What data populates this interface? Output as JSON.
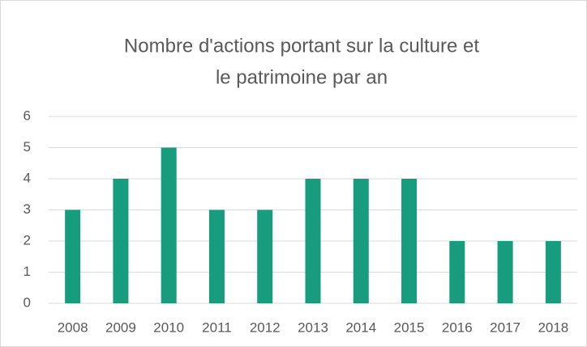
{
  "chart_data": {
    "type": "bar",
    "title": [
      "Nombre d'actions portant sur la culture et",
      "le patrimoine par an"
    ],
    "categories": [
      "2008",
      "2009",
      "2010",
      "2011",
      "2012",
      "2013",
      "2014",
      "2015",
      "2016",
      "2017",
      "2018"
    ],
    "values": [
      3,
      4,
      5,
      3,
      3,
      4,
      4,
      4,
      2,
      2,
      2
    ],
    "color": "#179c7d",
    "ylim": [
      0,
      6
    ],
    "yticks": [
      0,
      1,
      2,
      3,
      4,
      5,
      6
    ],
    "grid": true
  }
}
